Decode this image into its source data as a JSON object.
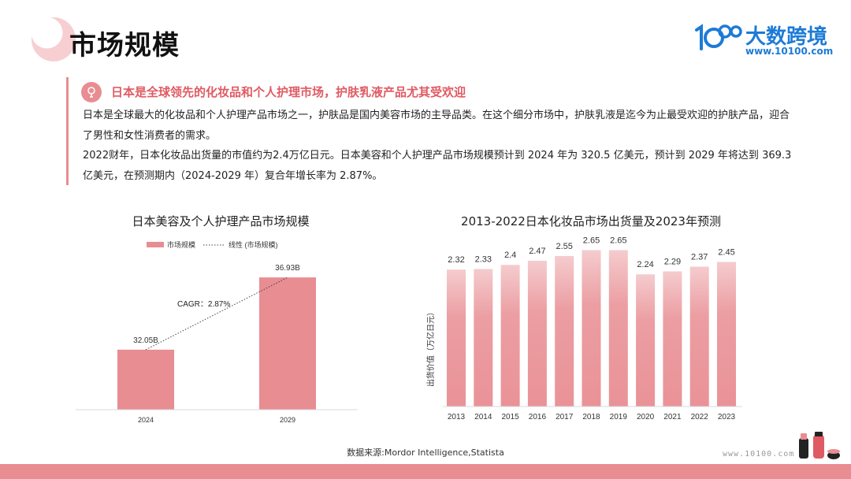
{
  "header": {
    "title": "市场规模",
    "logo_name": "大数跨境",
    "logo_url": "www.10100.com"
  },
  "intro": {
    "heading": "日本是全球领先的化妆品和个人护理市场，护肤乳液产品尤其受欢迎",
    "paragraph_1": "日本是全球最大的化妆品和个人护理产品市场之一，护肤品是国内美容市场的主导品类。在这个细分市场中，护肤乳液是迄今为止最受欢迎的护肤产品，迎合了男性和女性消费者的需求。",
    "paragraph_2": "2022财年，日本化妆品出货量的市值约为2.4万亿日元。日本美容和个人护理产品市场规模预计到 2024 年为 320.5 亿美元，预计到 2029 年将达到 369.3 亿美元，在预测期内（2024-2029 年）复合年增长率为 2.87%。"
  },
  "colors": {
    "accent": "#e88d92",
    "heading_red": "#e05a63",
    "logo_blue": "#1d7bd6"
  },
  "chart_data": [
    {
      "type": "bar",
      "title": "日本美容及个人护理产品市场规模",
      "legend": [
        "市场规模",
        "线性 (市场规模)"
      ],
      "legend_position": "top",
      "categories": [
        "2024",
        "2029"
      ],
      "values": [
        32.05,
        36.93
      ],
      "value_labels": [
        "32.05B",
        "36.93B"
      ],
      "trendline": "linear",
      "annotation": "CAGR：2.87%",
      "ylim": [
        28,
        38
      ],
      "grid": false
    },
    {
      "type": "bar",
      "title": "2013-2022日本化妆品市场出货量及2023年预测",
      "ylabel": "出货价值（万亿日元）",
      "categories": [
        "2013",
        "2014",
        "2015",
        "2016",
        "2017",
        "2018",
        "2019",
        "2020",
        "2021",
        "2022",
        "2023"
      ],
      "values": [
        2.32,
        2.33,
        2.4,
        2.47,
        2.55,
        2.65,
        2.65,
        2.24,
        2.29,
        2.37,
        2.45
      ],
      "ylim": [
        0,
        2.75
      ],
      "grid": false,
      "bar_style": "gradient-fade"
    }
  ],
  "footer": {
    "source": "数据来源:Mordor Intelligence,Statista",
    "url": "www.10100.com"
  }
}
